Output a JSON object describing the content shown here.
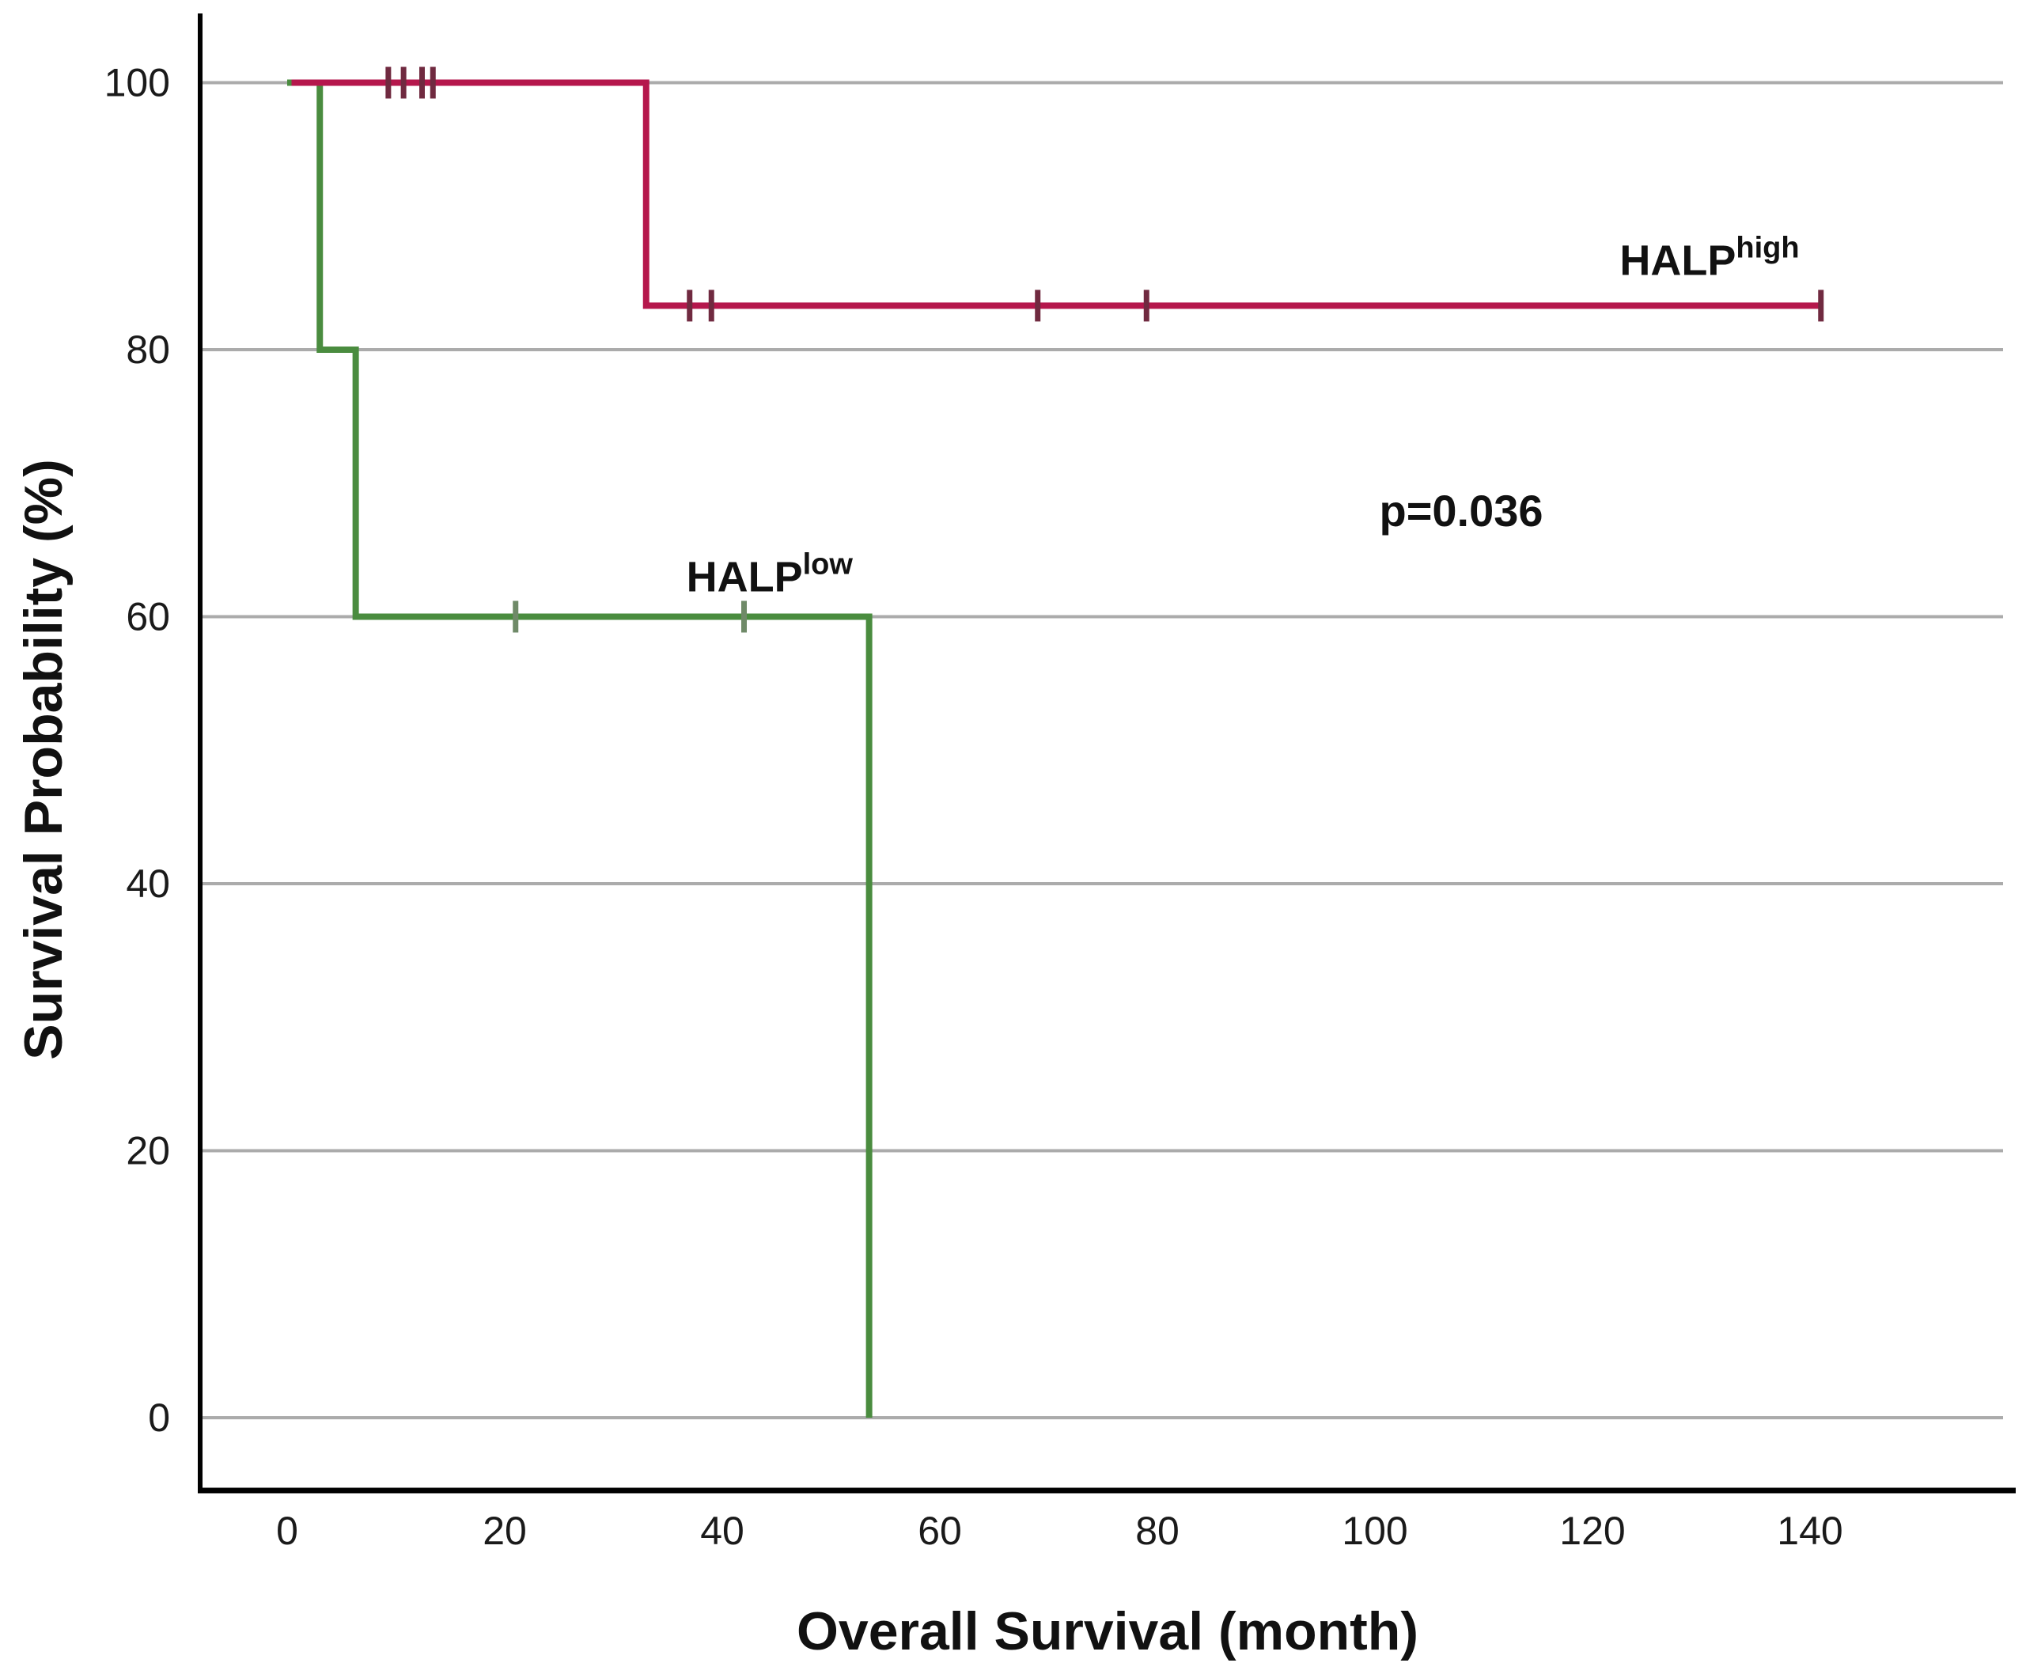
{
  "chart_data": {
    "type": "line",
    "subtype": "kaplan-meier-step",
    "title": "",
    "xlabel": "Overall Survival (month)",
    "ylabel": "Survival Probability (%)",
    "x_ticks": [
      0,
      20,
      40,
      60,
      80,
      100,
      120,
      140
    ],
    "y_ticks": [
      0,
      20,
      40,
      60,
      80,
      100
    ],
    "xlim": [
      -8,
      158
    ],
    "ylim": [
      -5,
      105
    ],
    "grid": "horizontal-only",
    "legend_position": "none",
    "gridline_color": "#ababab",
    "axis_color": "#000000",
    "background_color": "#ffffff",
    "series": [
      {
        "name": "HALP low",
        "color": "#4a8c3f",
        "censor_color": "#6f8a68",
        "steps": [
          [
            0,
            100
          ],
          [
            3,
            100
          ],
          [
            3,
            80
          ],
          [
            6.3,
            80
          ],
          [
            6.3,
            60
          ],
          [
            53.5,
            60
          ],
          [
            53.5,
            0
          ]
        ],
        "censors": [
          [
            21,
            60
          ],
          [
            42,
            60
          ]
        ]
      },
      {
        "name": "HALP high",
        "color": "#b5174c",
        "censor_color": "#702a40",
        "steps": [
          [
            0.4,
            100
          ],
          [
            33,
            100
          ],
          [
            33,
            83.3
          ],
          [
            141,
            83.3
          ]
        ],
        "censors": [
          [
            9.3,
            100
          ],
          [
            10.7,
            100
          ],
          [
            12.4,
            100
          ],
          [
            13.4,
            100
          ],
          [
            37,
            83.3
          ],
          [
            39,
            83.3
          ],
          [
            69,
            83.3
          ],
          [
            79,
            83.3
          ],
          [
            141,
            83.3
          ]
        ]
      }
    ],
    "annotations": [
      {
        "text": "HALP",
        "sup": "high",
        "x": 122.5,
        "y": 85.6,
        "size": 54,
        "sup_size": 38
      },
      {
        "text": "HALP",
        "sup": "low",
        "x": 36.7,
        "y": 61.9,
        "size": 54,
        "sup_size": 38
      },
      {
        "text": "p=0.036",
        "sup": "",
        "x": 100.4,
        "y": 66.8,
        "size": 56,
        "sup_size": 38
      }
    ]
  }
}
